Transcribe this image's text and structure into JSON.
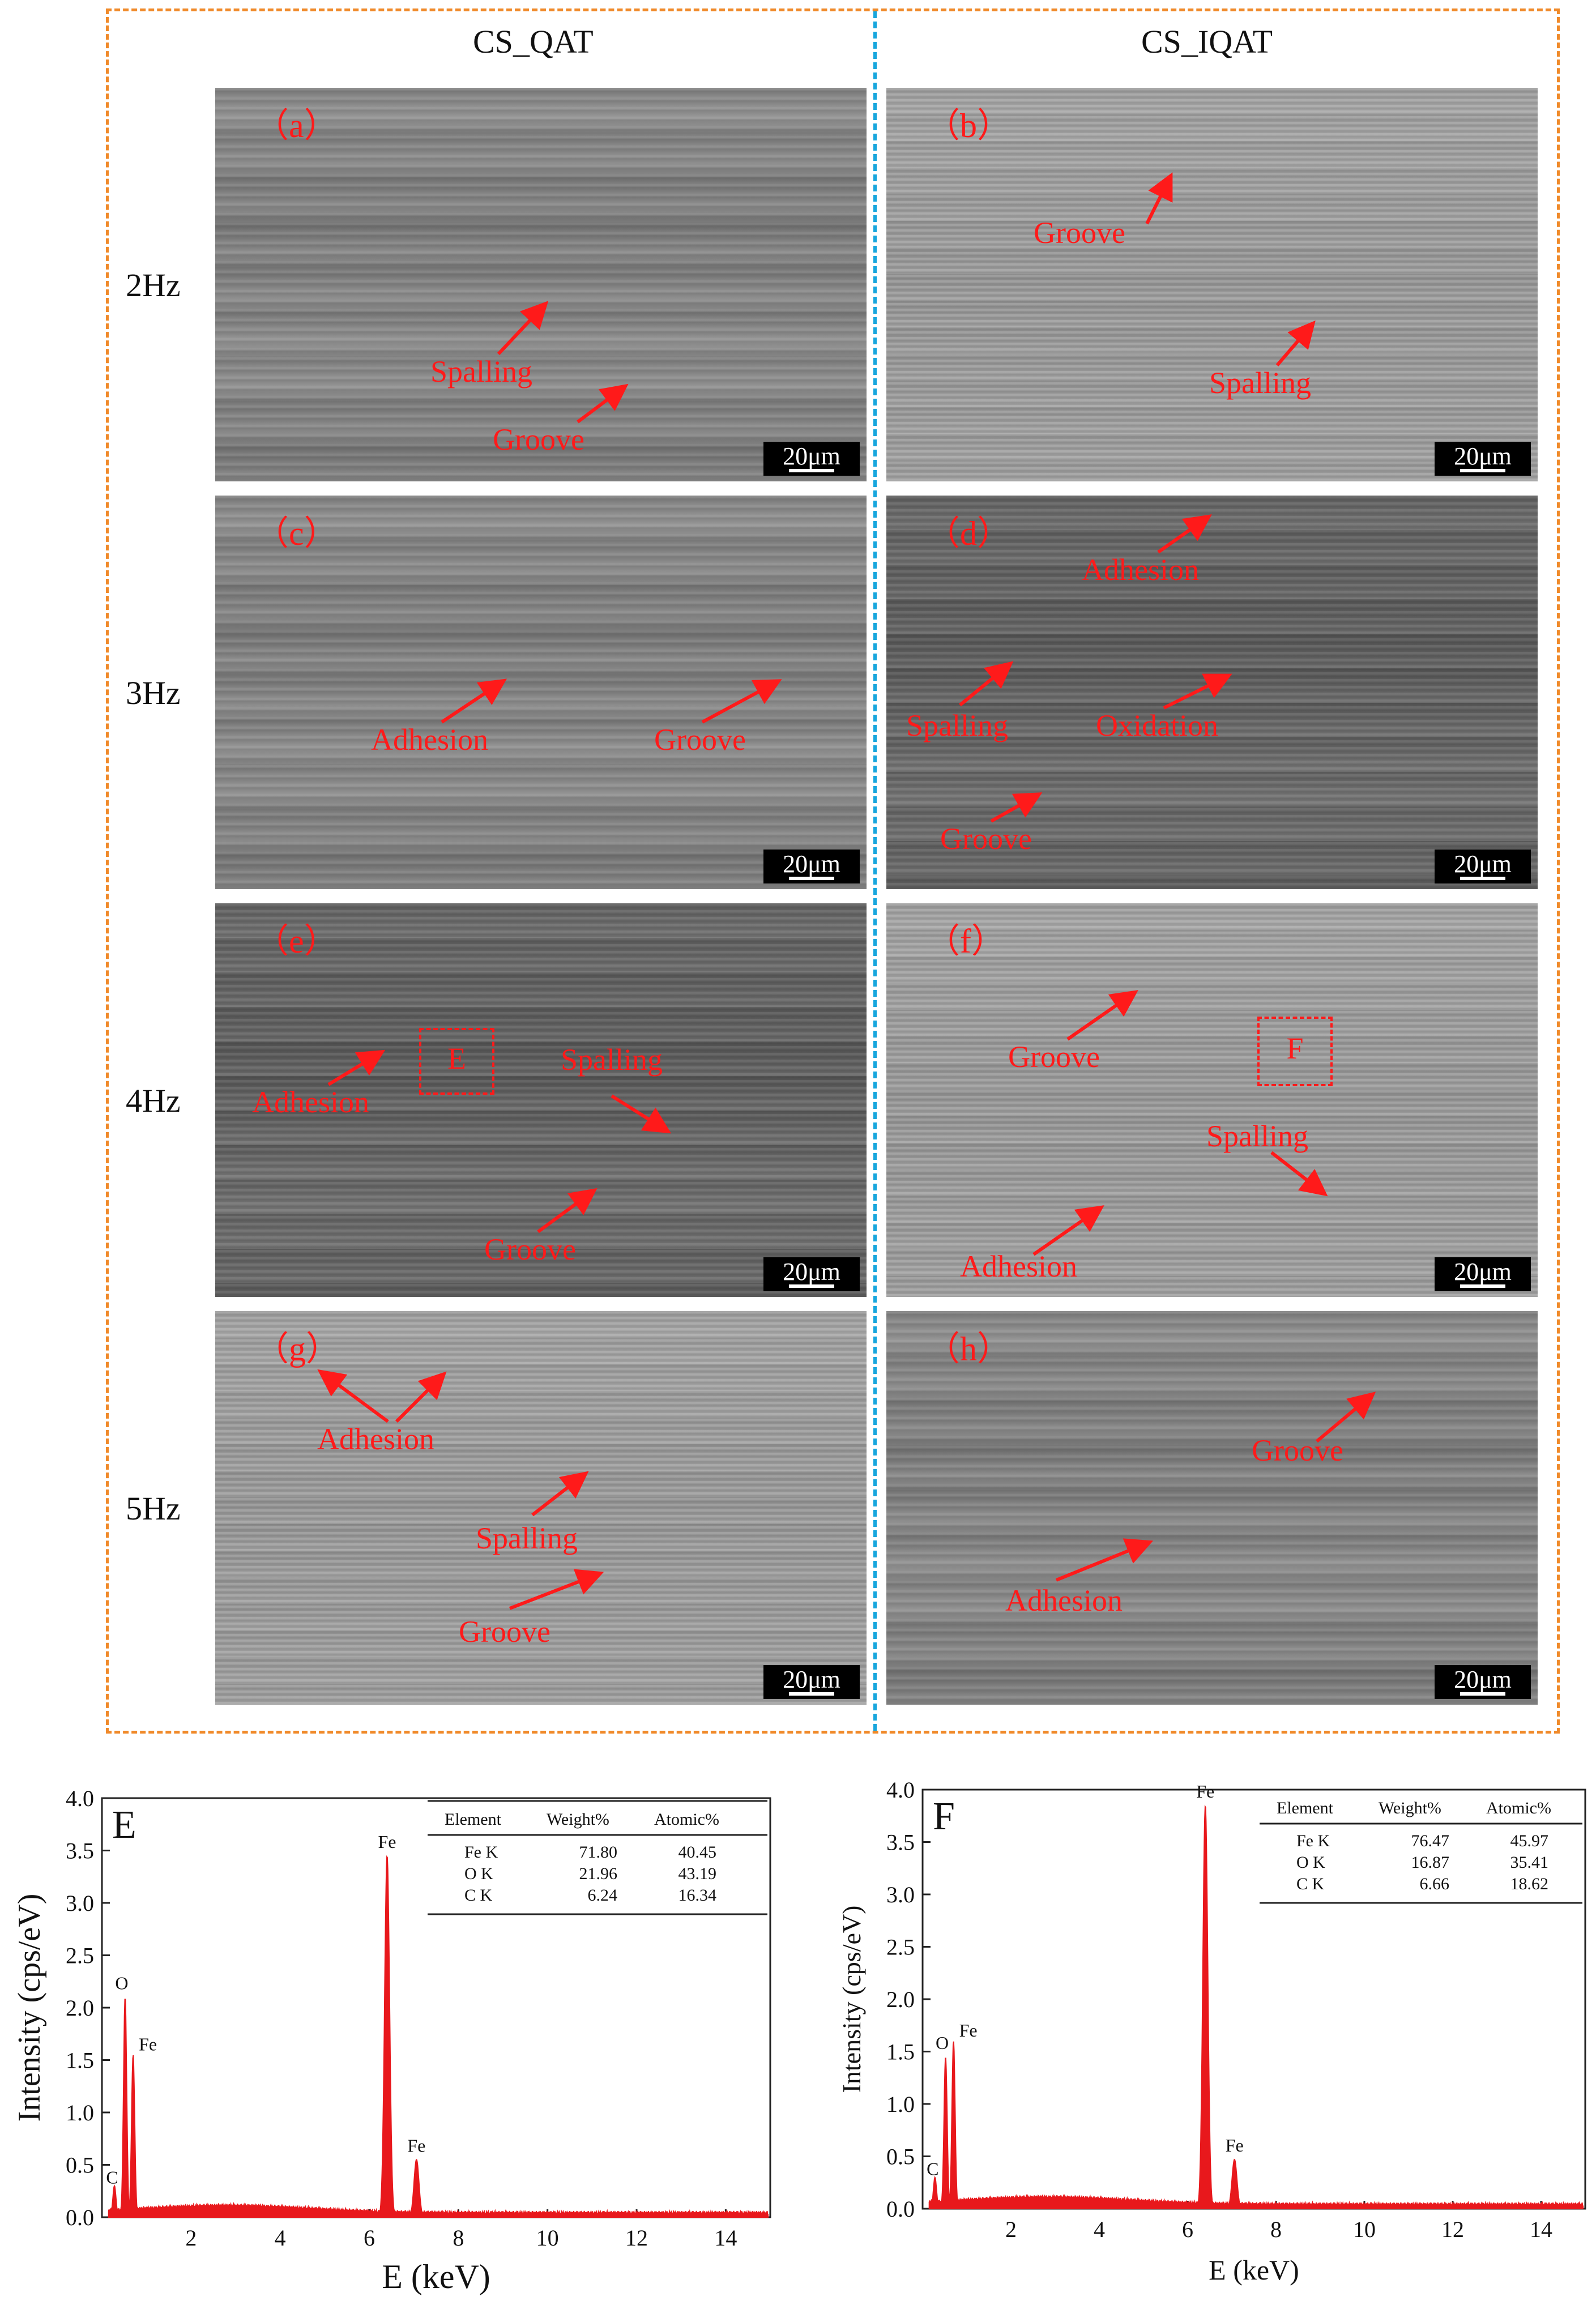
{
  "columns": [
    "CS_QAT",
    "CS_IQAT"
  ],
  "rows": [
    "2Hz",
    "3Hz",
    "4Hz",
    "5Hz"
  ],
  "scale_bar": "20μm",
  "annotation_color": "#ff1a1a",
  "panels": [
    {
      "label": "（a）",
      "annotations": [
        "Spalling",
        "Groove"
      ]
    },
    {
      "label": "（b）",
      "annotations": [
        "Groove",
        "Spalling"
      ]
    },
    {
      "label": "（c）",
      "annotations": [
        "Adhesion",
        "Groove"
      ]
    },
    {
      "label": "（d）",
      "annotations": [
        "Adhesion",
        "Spalling",
        "Oxidation",
        "Groove"
      ]
    },
    {
      "label": "（e）",
      "annotations": [
        "Adhesion",
        "Spalling",
        "Groove"
      ],
      "box": "E"
    },
    {
      "label": "（f）",
      "annotations": [
        "Groove",
        "Spalling",
        "Adhesion"
      ],
      "box": "F"
    },
    {
      "label": "（g）",
      "annotations": [
        "Adhesion",
        "Spalling",
        "Groove"
      ]
    },
    {
      "label": "（h）",
      "annotations": [
        "Groove",
        "Adhesion"
      ]
    }
  ],
  "chart_data": [
    {
      "type": "line",
      "panel_label": "E",
      "xlabel": "E (keV)",
      "ylabel": "Intensity (cps/eV)",
      "xlim": [
        0,
        15
      ],
      "ylim": [
        0,
        4.0
      ],
      "xticks": [
        2,
        4,
        6,
        8,
        10,
        12,
        14
      ],
      "yticks": [
        0.0,
        0.5,
        1.0,
        1.5,
        2.0,
        2.5,
        3.0,
        3.5,
        4.0
      ],
      "peaks": [
        {
          "label": "C",
          "x": 0.28,
          "y": 0.3
        },
        {
          "label": "O",
          "x": 0.52,
          "y": 2.1
        },
        {
          "label": "Fe",
          "x": 0.7,
          "y": 1.55
        },
        {
          "label": "Fe",
          "x": 6.4,
          "y": 3.45
        },
        {
          "label": "Fe",
          "x": 7.06,
          "y": 0.55
        }
      ],
      "table": {
        "headers": [
          "Element",
          "Weight%",
          "Atomic%"
        ],
        "rows": [
          [
            "Fe K",
            "71.80",
            "40.45"
          ],
          [
            "O K",
            "21.96",
            "43.19"
          ],
          [
            "C K",
            "6.24",
            "16.34"
          ]
        ]
      }
    },
    {
      "type": "line",
      "panel_label": "F",
      "xlabel": "E (keV)",
      "ylabel": "Intensity (cps/eV)",
      "xlim": [
        0,
        15
      ],
      "ylim": [
        0,
        4.0
      ],
      "xticks": [
        2,
        4,
        6,
        8,
        10,
        12,
        14
      ],
      "yticks": [
        0.0,
        0.5,
        1.0,
        1.5,
        2.0,
        2.5,
        3.0,
        3.5,
        4.0
      ],
      "peaks": [
        {
          "label": "C",
          "x": 0.28,
          "y": 0.3
        },
        {
          "label": "O",
          "x": 0.52,
          "y": 1.45
        },
        {
          "label": "Fe",
          "x": 0.7,
          "y": 1.6
        },
        {
          "label": "Fe",
          "x": 6.4,
          "y": 3.85
        },
        {
          "label": "Fe",
          "x": 7.06,
          "y": 0.47
        }
      ],
      "table": {
        "headers": [
          "Element",
          "Weight%",
          "Atomic%"
        ],
        "rows": [
          [
            "Fe K",
            "76.47",
            "45.97"
          ],
          [
            "O K",
            "16.87",
            "35.41"
          ],
          [
            "C K",
            "6.66",
            "18.62"
          ]
        ]
      }
    }
  ]
}
